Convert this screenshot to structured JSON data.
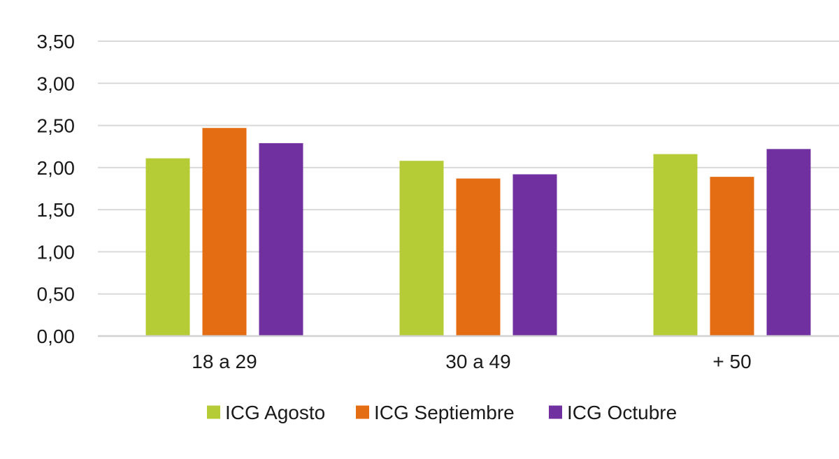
{
  "chart_data": {
    "type": "bar",
    "title": "",
    "xlabel": "",
    "ylabel": "",
    "categories": [
      "18 a 29",
      "30 a 49",
      "+ 50"
    ],
    "series": [
      {
        "name": "ICG Agosto",
        "color": "#b5cc37",
        "values": [
          2.11,
          2.08,
          2.16
        ]
      },
      {
        "name": "ICG Septiembre",
        "color": "#e46c13",
        "values": [
          2.47,
          1.87,
          1.89
        ]
      },
      {
        "name": "ICG Octubre",
        "color": "#7030a0",
        "values": [
          2.29,
          1.92,
          2.22
        ]
      }
    ],
    "ylim": [
      0,
      3.5
    ],
    "yticks": [
      "0,00",
      "0,50",
      "1,00",
      "1,50",
      "2,00",
      "2,50",
      "3,00",
      "3,50"
    ],
    "grid": true,
    "legend_position": "bottom"
  }
}
